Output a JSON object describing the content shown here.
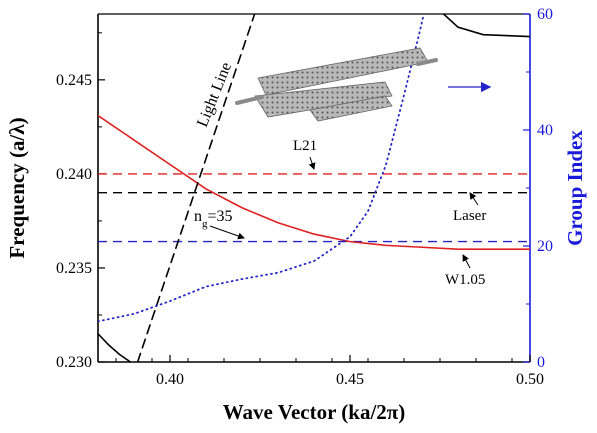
{
  "chart_data": {
    "type": "line",
    "xlabel": "Wave Vector (ka/2π)",
    "ylabel": "Frequency (a/λ)",
    "y2label": "Group Index",
    "xlim": [
      0.38,
      0.5
    ],
    "ylim": [
      0.23,
      0.2485
    ],
    "y2lim": [
      0,
      60
    ],
    "x_ticks": [
      "0.40",
      "0.45",
      "0.50"
    ],
    "y_ticks": [
      "0.230",
      "0.235",
      "0.240",
      "0.245"
    ],
    "y2_ticks": [
      "0",
      "20",
      "40",
      "60"
    ],
    "colors": {
      "w105": "#e02020",
      "light_line": "#000000",
      "l21": "#e02020",
      "laser": "#000000",
      "ng": "#2323c8",
      "group_index": "#2323c8",
      "upper_band": "#000000",
      "right_axis": "#1a1adb"
    },
    "series": [
      {
        "name": "W1.05",
        "axis": "left",
        "style": "solid",
        "points": [
          [
            0.38,
            0.2431
          ],
          [
            0.39,
            0.2418
          ],
          [
            0.4,
            0.2405
          ],
          [
            0.41,
            0.2392
          ],
          [
            0.42,
            0.2382
          ],
          [
            0.43,
            0.2374
          ],
          [
            0.44,
            0.2368
          ],
          [
            0.45,
            0.2364
          ],
          [
            0.46,
            0.2362
          ],
          [
            0.47,
            0.2361
          ],
          [
            0.48,
            0.236
          ],
          [
            0.49,
            0.236
          ],
          [
            0.5,
            0.236
          ]
        ]
      },
      {
        "name": "Light Line",
        "axis": "left",
        "style": "dashed",
        "points": [
          [
            0.391,
            0.23
          ],
          [
            0.4235,
            0.2485
          ]
        ]
      },
      {
        "name": "Group Index",
        "axis": "right",
        "style": "dotted",
        "points": [
          [
            0.38,
            7.0
          ],
          [
            0.39,
            8.3
          ],
          [
            0.4,
            10.5
          ],
          [
            0.41,
            13.0
          ],
          [
            0.42,
            14.3
          ],
          [
            0.43,
            15.4
          ],
          [
            0.44,
            17.4
          ],
          [
            0.45,
            21.6
          ],
          [
            0.455,
            26.0
          ],
          [
            0.46,
            34.0
          ],
          [
            0.465,
            46.0
          ],
          [
            0.469,
            56.0
          ],
          [
            0.4705,
            60.0
          ]
        ]
      },
      {
        "name": "upper band",
        "axis": "left",
        "style": "solid",
        "points": [
          [
            0.38,
            0.2315
          ],
          [
            0.383,
            0.2309
          ],
          [
            0.386,
            0.2304
          ],
          [
            0.389,
            0.23
          ]
        ]
      },
      {
        "name": "upper band top",
        "axis": "left",
        "style": "solid",
        "points": [
          [
            0.476,
            0.2485
          ],
          [
            0.48,
            0.2478
          ],
          [
            0.487,
            0.2474
          ],
          [
            0.5,
            0.2473
          ]
        ]
      }
    ],
    "hlines": [
      {
        "name": "L21",
        "y": 0.24,
        "axis": "left",
        "style": "dashed"
      },
      {
        "name": "Laser",
        "y": 0.239,
        "axis": "left",
        "style": "dashed"
      },
      {
        "name": "ng",
        "y": 0.2364,
        "axis": "left",
        "style": "dashed"
      }
    ],
    "annotations": {
      "light_line": "Light Line",
      "l21": "L21",
      "laser": "Laser",
      "ng_prefix": "n",
      "ng_sub": "g",
      "ng_value": "=35",
      "w105": "W1.05"
    }
  }
}
